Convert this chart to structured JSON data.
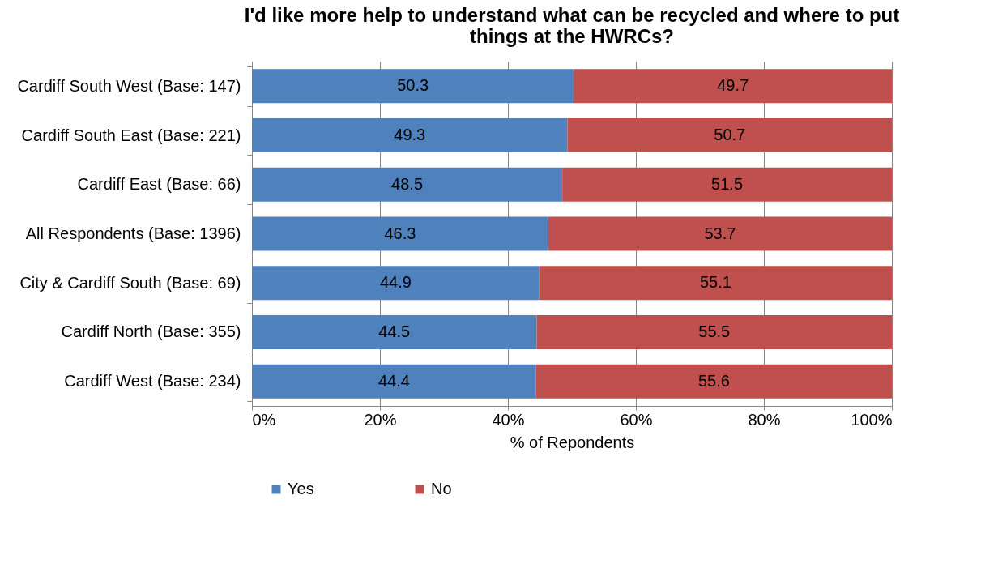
{
  "chart_data": {
    "type": "bar",
    "orientation": "horizontal",
    "stacked": true,
    "title": "I'd like more help to understand what can be recycled and where to put things at the HWRCs?",
    "xlabel": "% of Repondents",
    "categories": [
      "Cardiff South West (Base: 147)",
      "Cardiff South East (Base: 221)",
      "Cardiff East (Base: 66)",
      "All Respondents (Base: 1396)",
      "City & Cardiff South (Base: 69)",
      "Cardiff North (Base: 355)",
      "Cardiff West (Base: 234)"
    ],
    "series": [
      {
        "name": "Yes",
        "color": "#4f81bd",
        "values": [
          50.3,
          49.3,
          48.5,
          46.3,
          44.9,
          44.5,
          44.4
        ]
      },
      {
        "name": "No",
        "color": "#c0504d",
        "values": [
          49.7,
          50.7,
          51.5,
          53.7,
          55.1,
          55.5,
          55.6
        ]
      }
    ],
    "xlim": [
      0,
      100
    ],
    "xticks": [
      {
        "value": 0,
        "label": "0%"
      },
      {
        "value": 20,
        "label": "20%"
      },
      {
        "value": 40,
        "label": "40%"
      },
      {
        "value": 60,
        "label": "60%"
      },
      {
        "value": 80,
        "label": "80%"
      },
      {
        "value": 100,
        "label": "100%"
      }
    ],
    "grid": "x",
    "legend": "bottom",
    "data_labels": true
  }
}
